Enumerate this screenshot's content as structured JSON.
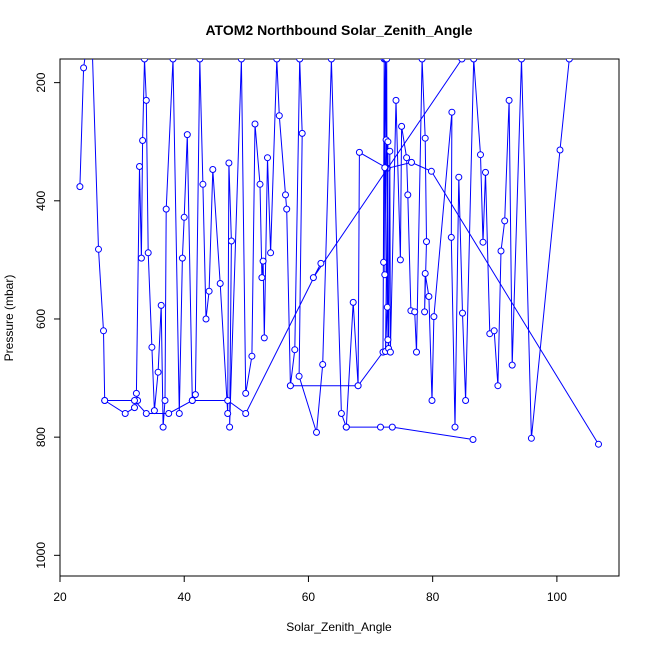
{
  "chart_data": {
    "type": "line",
    "title": "ATOM2 Northbound Solar_Zenith_Angle",
    "xlabel": "Solar_Zenith_Angle",
    "ylabel": "Pressure (mbar)",
    "xlim": [
      20,
      110
    ],
    "ylim": [
      1035,
      160
    ],
    "y_inverted": true,
    "xticks": [
      20,
      40,
      60,
      80,
      100
    ],
    "yticks": [
      200,
      400,
      600,
      800,
      1000
    ],
    "grid": false,
    "legend": "none",
    "series": [
      {
        "color": "#0000ff",
        "marker": "open-circle",
        "points": [
          [
            23.2,
            376
          ],
          [
            23.8,
            175
          ],
          [
            25.0,
            80
          ],
          [
            26.2,
            482
          ],
          [
            27.0,
            620
          ],
          [
            27.2,
            738
          ],
          [
            30.5,
            760
          ],
          [
            32.0,
            750
          ],
          [
            32.5,
            738
          ],
          [
            32.3,
            726
          ],
          [
            32.8,
            342
          ],
          [
            33.1,
            497
          ],
          [
            33.3,
            298
          ],
          [
            33.6,
            160
          ],
          [
            33.9,
            230
          ],
          [
            34.2,
            488
          ],
          [
            34.8,
            648
          ],
          [
            35.2,
            755
          ],
          [
            35.8,
            690
          ],
          [
            36.3,
            577
          ],
          [
            36.6,
            783
          ],
          [
            36.9,
            738
          ],
          [
            37.1,
            414
          ],
          [
            38.2,
            160
          ],
          [
            39.2,
            760
          ],
          [
            39.7,
            497
          ],
          [
            40.0,
            428
          ],
          [
            40.5,
            288
          ],
          [
            41.3,
            738
          ],
          [
            41.8,
            728
          ],
          [
            42.5,
            160
          ],
          [
            43.0,
            372
          ],
          [
            43.5,
            600
          ],
          [
            44.0,
            553
          ],
          [
            44.6,
            347
          ],
          [
            45.8,
            540
          ],
          [
            47.0,
            760
          ],
          [
            47.2,
            336
          ],
          [
            47.6,
            468
          ],
          [
            47.3,
            783
          ],
          [
            49.2,
            160
          ],
          [
            49.9,
            726
          ],
          [
            50.9,
            663
          ],
          [
            51.4,
            270
          ],
          [
            52.2,
            372
          ],
          [
            52.5,
            530
          ],
          [
            52.7,
            502
          ],
          [
            52.9,
            632
          ],
          [
            53.4,
            327
          ],
          [
            53.9,
            488
          ],
          [
            54.9,
            160
          ],
          [
            55.3,
            256
          ],
          [
            56.3,
            390
          ],
          [
            56.5,
            414
          ],
          [
            57.1,
            713
          ],
          [
            57.8,
            652
          ],
          [
            58.6,
            160
          ],
          [
            59.0,
            286
          ],
          [
            58.5,
            697
          ],
          [
            61.3,
            792
          ],
          [
            62.3,
            677
          ],
          [
            63.7,
            160
          ],
          [
            65.3,
            760
          ],
          [
            66.1,
            783
          ],
          [
            67.2,
            572
          ],
          [
            68.0,
            713
          ],
          [
            68.2,
            318
          ],
          [
            72.7,
            345
          ],
          [
            76.6,
            335
          ],
          [
            79.8,
            350
          ],
          [
            106.7,
            812
          ]
        ]
      },
      {
        "color": "#0000ff",
        "marker": "open-circle",
        "points": [
          [
            57.1,
            713
          ],
          [
            68.0,
            713
          ],
          [
            72.0,
            656
          ],
          [
            72.2,
            160
          ],
          [
            72.3,
            344
          ],
          [
            72.1,
            504
          ],
          [
            72.4,
            160
          ],
          [
            72.5,
            297
          ],
          [
            72.3,
            525
          ],
          [
            72.6,
            160
          ],
          [
            72.7,
            580
          ],
          [
            72.4,
            655
          ],
          [
            72.8,
            300
          ],
          [
            72.8,
            635
          ],
          [
            72.9,
            650
          ],
          [
            73.1,
            316
          ],
          [
            73.2,
            656
          ],
          [
            74.1,
            230
          ],
          [
            74.8,
            500
          ],
          [
            75.0,
            274
          ],
          [
            75.8,
            327
          ],
          [
            76.0,
            390
          ],
          [
            76.5,
            586
          ],
          [
            77.1,
            588
          ],
          [
            77.4,
            656
          ],
          [
            78.3,
            160
          ],
          [
            78.8,
            294
          ],
          [
            79.0,
            469
          ],
          [
            78.7,
            588
          ],
          [
            78.8,
            523
          ],
          [
            79.4,
            562
          ],
          [
            79.9,
            738
          ],
          [
            80.2,
            596
          ],
          [
            83.1,
            250
          ],
          [
            83.0,
            462
          ],
          [
            83.6,
            783
          ],
          [
            84.2,
            360
          ],
          [
            84.8,
            590
          ],
          [
            85.3,
            738
          ],
          [
            86.6,
            160
          ],
          [
            87.7,
            322
          ],
          [
            88.1,
            470
          ],
          [
            88.5,
            352
          ],
          [
            89.2,
            625
          ],
          [
            89.9,
            620
          ],
          [
            90.5,
            713
          ],
          [
            91.0,
            485
          ],
          [
            91.6,
            434
          ],
          [
            92.3,
            230
          ],
          [
            92.8,
            678
          ],
          [
            94.3,
            160
          ],
          [
            95.9,
            802
          ],
          [
            100.5,
            314
          ],
          [
            102.0,
            160
          ]
        ]
      },
      {
        "color": "#0000ff",
        "marker": "open-circle",
        "points": [
          [
            27.2,
            738
          ],
          [
            32.0,
            738
          ],
          [
            33.9,
            760
          ],
          [
            37.5,
            760
          ],
          [
            41.3,
            738
          ],
          [
            47.0,
            738
          ],
          [
            49.9,
            760
          ],
          [
            62.0,
            506
          ],
          [
            60.8,
            530
          ],
          [
            84.7,
            160
          ]
        ]
      },
      {
        "color": "#0000ff",
        "marker": "open-circle",
        "points": [
          [
            66.1,
            783
          ],
          [
            71.6,
            783
          ],
          [
            73.5,
            783
          ],
          [
            86.5,
            804
          ]
        ]
      }
    ]
  }
}
